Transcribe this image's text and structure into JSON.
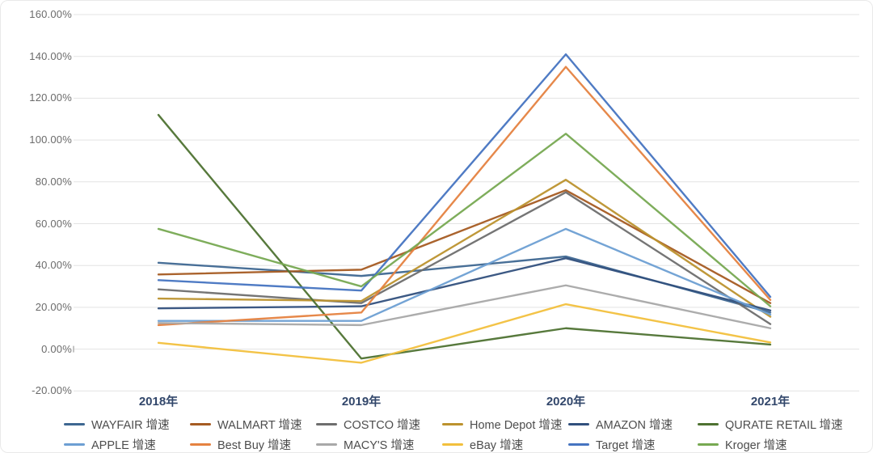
{
  "chart_data": {
    "type": "line",
    "title": "",
    "xlabel": "",
    "ylabel": "",
    "categories": [
      "2018年",
      "2019年",
      "2020年",
      "2021年"
    ],
    "y_tick_labels": [
      "160.00%",
      "140.00%",
      "120.00%",
      "100.00%",
      "80.00%",
      "60.00%",
      "40.00%",
      "20.00%",
      "0.00%",
      "-20.00%"
    ],
    "ylim": [
      -20,
      160
    ],
    "y_step": 20,
    "grid": true,
    "legend_position": "bottom",
    "gridline_color": "#e3e3e3",
    "axis_tick_color": "#b0b0b0",
    "series": [
      {
        "name": "WAYFAIR 增速",
        "color": "#3E6791",
        "values": [
          41.3,
          35.0,
          44.3,
          17.5
        ]
      },
      {
        "name": "WALMART 增速",
        "color": "#A55B22",
        "values": [
          35.7,
          38.0,
          76.0,
          22.0
        ]
      },
      {
        "name": "COSTCO 增速",
        "color": "#6E6E6E",
        "values": [
          28.6,
          22.0,
          75.0,
          12.0
        ]
      },
      {
        "name": "Home Depot 增速",
        "color": "#BC922E",
        "values": [
          24.2,
          23.0,
          81.0,
          15.5
        ]
      },
      {
        "name": "AMAZON 增速",
        "color": "#31507D",
        "values": [
          19.5,
          20.5,
          43.5,
          18.5
        ]
      },
      {
        "name": "QURATE RETAIL 增速",
        "color": "#4E7231",
        "values": [
          112.0,
          -4.5,
          10.0,
          2.2
        ]
      },
      {
        "name": "APPLE 增速",
        "color": "#6D9FD3",
        "values": [
          13.5,
          13.5,
          57.5,
          16.5
        ]
      },
      {
        "name": "Best Buy 增速",
        "color": "#E58240",
        "values": [
          11.5,
          17.5,
          135.0,
          23.5
        ]
      },
      {
        "name": "MACY'S 增速",
        "color": "#A8A8A8",
        "values": [
          12.5,
          11.5,
          30.5,
          10.0
        ]
      },
      {
        "name": "eBay 增速",
        "color": "#F2C03D",
        "values": [
          3.0,
          -6.5,
          21.5,
          3.2
        ]
      },
      {
        "name": "Target 增速",
        "color": "#4674C1",
        "values": [
          33.0,
          28.0,
          141.0,
          25.0
        ]
      },
      {
        "name": "Kroger 增速",
        "color": "#77A952",
        "values": [
          57.5,
          30.0,
          103.0,
          20.5
        ]
      }
    ]
  }
}
